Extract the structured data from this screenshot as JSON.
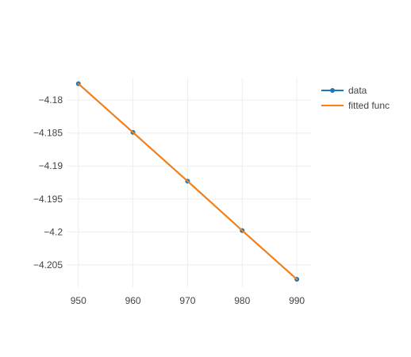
{
  "chart_data": {
    "type": "line",
    "grid": true,
    "legend_position": "top-right",
    "xlim": [
      948,
      992.6
    ],
    "ylim": [
      -4.2084,
      -4.1766
    ],
    "x_ticks": [
      950,
      960,
      970,
      980,
      990
    ],
    "x_tick_labels": [
      "950",
      "960",
      "970",
      "980",
      "990"
    ],
    "y_ticks": [
      -4.18,
      -4.185,
      -4.19,
      -4.195,
      -4.2,
      -4.205
    ],
    "y_tick_labels": [
      "−4.18",
      "−4.185",
      "−4.19",
      "−4.195",
      "−4.2",
      "−4.205"
    ],
    "series": [
      {
        "name": "data",
        "mode": "lines+markers",
        "color": "#1f77b4",
        "x": [
          950,
          960,
          970,
          980,
          990
        ],
        "y": [
          -4.1775,
          -4.1849,
          -4.1923,
          -4.1998,
          -4.2072
        ]
      },
      {
        "name": "fitted func",
        "mode": "lines",
        "color": "#ff7f0e",
        "x": [
          950,
          960,
          970,
          980,
          990
        ],
        "y": [
          -4.1775,
          -4.1849,
          -4.1923,
          -4.1998,
          -4.2072
        ]
      }
    ]
  }
}
